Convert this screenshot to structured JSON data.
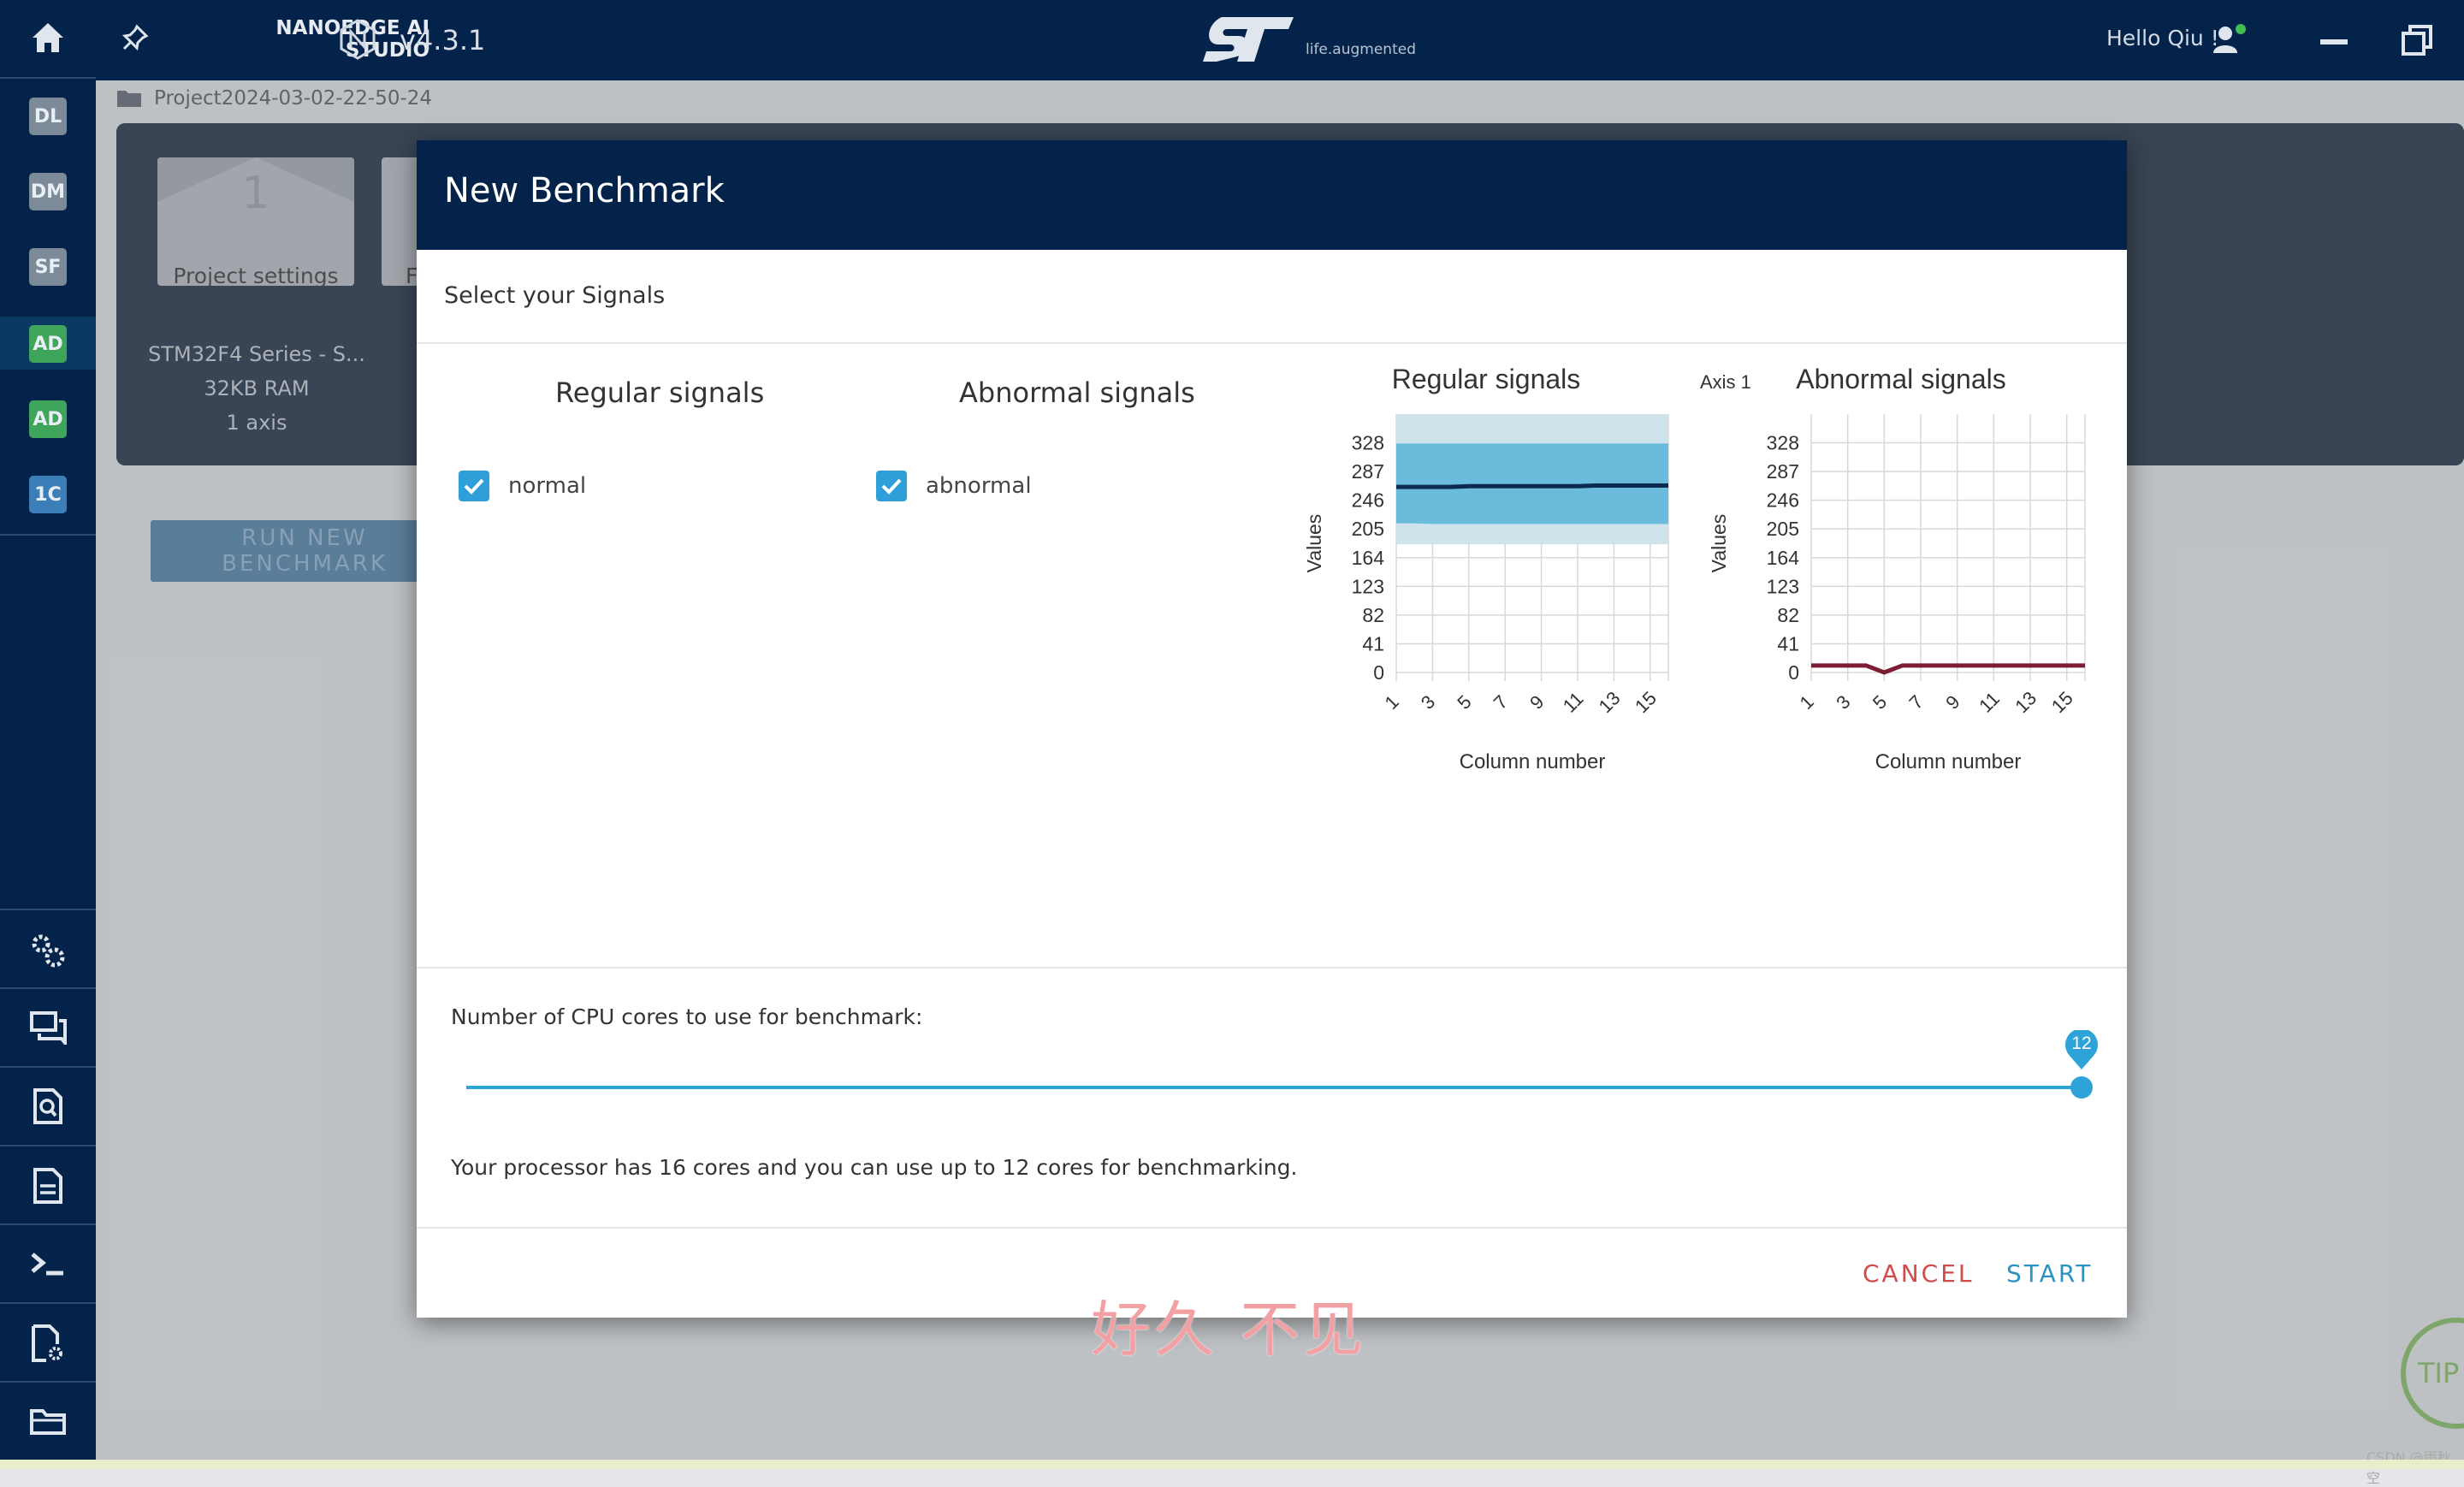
{
  "app": {
    "name_line1": "NANOEDGE AI",
    "name_line2": "STUDIO",
    "version": "v4.3.1",
    "logo_tagline": "life.augmented",
    "greeting": "Hello Qiu !"
  },
  "sidebar": {
    "steps": [
      {
        "label": "DL",
        "color": "#7d8b98"
      },
      {
        "label": "DM",
        "color": "#7d8b98"
      },
      {
        "label": "SF",
        "color": "#7d8b98"
      },
      {
        "label": "AD",
        "color": "#3fa55b"
      },
      {
        "label": "AD",
        "color": "#3fa55b"
      },
      {
        "label": "1C",
        "color": "#3c7fb8"
      }
    ],
    "tools": [
      "settings-icon",
      "chat-icon",
      "document-search-icon",
      "document-icon",
      "terminal-icon",
      "file-settings-icon",
      "folder-icon"
    ]
  },
  "project": {
    "breadcrumb": "Project2024-03-02-22-50-24",
    "step1_number": "1",
    "step1_label": "Project settings",
    "step2_label": "F",
    "mcu": "STM32F4 Series - S...",
    "ram": "32KB RAM",
    "axis": "1 axis",
    "run_button_line1": "RUN NEW",
    "run_button_line2": "BENCHMARK"
  },
  "modal": {
    "title": "New Benchmark",
    "subtitle": "Select your Signals",
    "regular_header": "Regular signals",
    "abnormal_header": "Abnormal signals",
    "regular_signal": "normal",
    "abnormal_signal": "abnormal",
    "cpu_label": "Number of CPU cores to use for benchmark:",
    "cpu_value": 12,
    "cpu_max": 12,
    "cpu_info": "Your processor has 16 cores and you can use up to 12 cores for benchmarking.",
    "cancel": "CANCEL",
    "start": "START"
  },
  "chart_data": [
    {
      "type": "area",
      "title": "Regular signals",
      "xlabel": "Column number",
      "ylabel": "Values",
      "xticks": [
        1,
        3,
        5,
        7,
        9,
        11,
        13,
        15
      ],
      "yticks": [
        0,
        41,
        82,
        123,
        164,
        205,
        246,
        287,
        328
      ],
      "xlim": [
        1,
        16
      ],
      "ylim": [
        0,
        369
      ],
      "x": [
        1,
        2,
        3,
        4,
        5,
        6,
        7,
        8,
        9,
        10,
        11,
        12,
        13,
        14,
        15,
        16
      ],
      "series": [
        {
          "role": "mean",
          "values": [
            265,
            265,
            265,
            265,
            266,
            266,
            266,
            266,
            266,
            266,
            266,
            267,
            267,
            267,
            267,
            267
          ]
        },
        {
          "role": "std_band",
          "upper": [
            327,
            327,
            327,
            327,
            327,
            327,
            327,
            327,
            327,
            327,
            327,
            327,
            327,
            327,
            327,
            327
          ],
          "lower": [
            213,
            213,
            212,
            212,
            212,
            212,
            212,
            212,
            212,
            212,
            212,
            212,
            212,
            212,
            212,
            212
          ]
        },
        {
          "role": "minmax_band",
          "upper": [
            369,
            369,
            369,
            369,
            369,
            369,
            369,
            369,
            369,
            369,
            369,
            369,
            369,
            369,
            369,
            369
          ],
          "lower": [
            183,
            183,
            183,
            183,
            183,
            183,
            183,
            183,
            183,
            183,
            183,
            183,
            183,
            183,
            183,
            183
          ]
        }
      ],
      "colors": {
        "mean": "#0c2a50",
        "std_band": "#6bbbdc",
        "minmax_band": "#cfe4ea"
      }
    },
    {
      "type": "line",
      "title": "Abnormal signals",
      "axis_label": "Axis 1",
      "xlabel": "Column number",
      "ylabel": "Values",
      "xticks": [
        1,
        3,
        5,
        7,
        9,
        11,
        13,
        15
      ],
      "yticks": [
        0,
        41,
        82,
        123,
        164,
        205,
        246,
        287,
        328
      ],
      "xlim": [
        1,
        16
      ],
      "ylim": [
        0,
        369
      ],
      "x": [
        1,
        2,
        3,
        4,
        5,
        6,
        7,
        8,
        9,
        10,
        11,
        12,
        13,
        14,
        15,
        16
      ],
      "series": [
        {
          "role": "mean",
          "values": [
            10,
            10,
            10,
            10,
            0,
            10,
            10,
            10,
            10,
            10,
            10,
            10,
            10,
            10,
            10,
            10
          ]
        }
      ],
      "colors": {
        "mean": "#7c1d35"
      }
    }
  ],
  "watermark": "好久 不见",
  "tip_label": "TIP",
  "footer_credit": "CSDN @雨秋空"
}
